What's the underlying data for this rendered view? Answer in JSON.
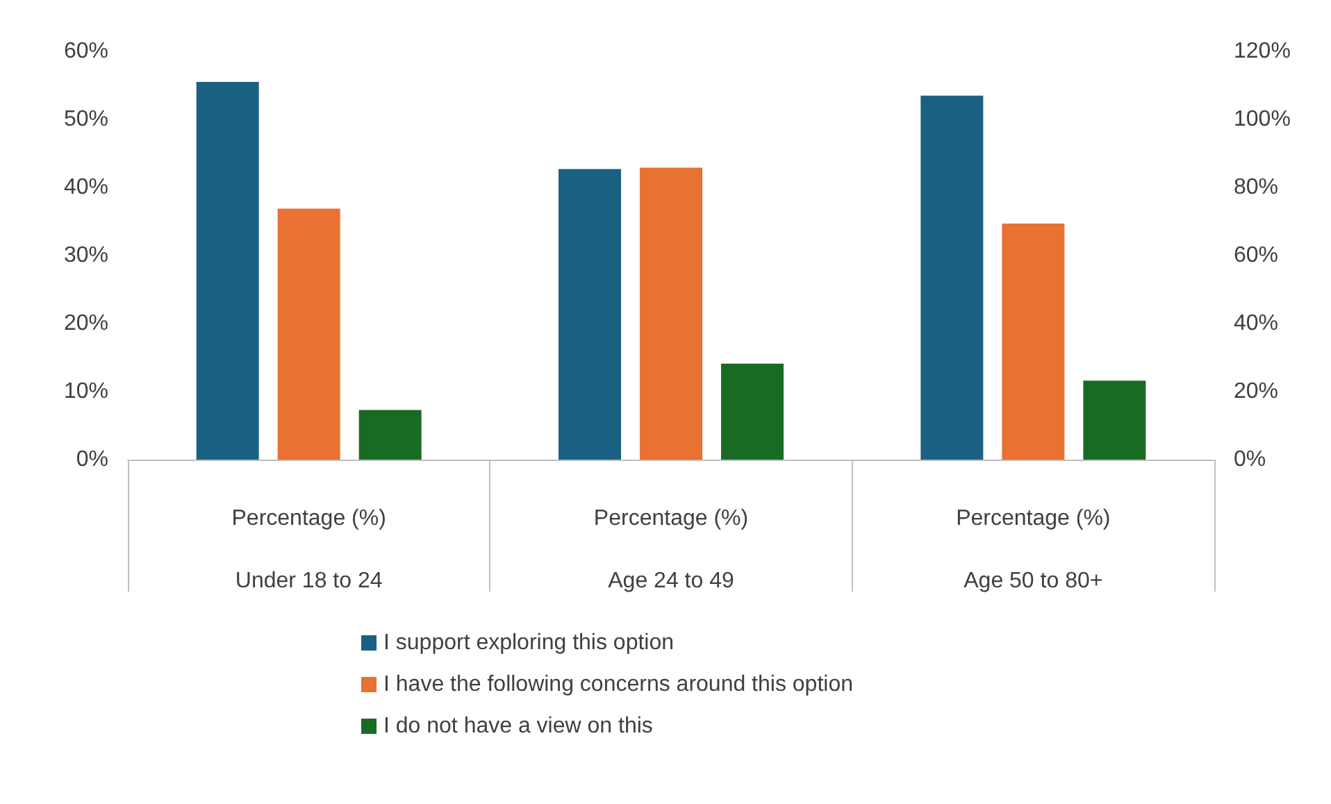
{
  "chart_data": {
    "type": "bar",
    "categories": [
      "Percentage (%)\nUnder 18 to 24",
      "Percentage (%)\nAge 24 to 49",
      "Percentage (%)\nAge 50 to 80+"
    ],
    "series": [
      {
        "name": "I support exploring this option",
        "color": "#1a6083",
        "values": [
          55.5,
          42.7,
          53.5
        ]
      },
      {
        "name": "I have the following concerns around this option",
        "color": "#e97132",
        "values": [
          36.9,
          42.9,
          34.7
        ]
      },
      {
        "name": "I do not have a view on this",
        "color": "#196b24",
        "values": [
          7.3,
          14.1,
          11.6
        ]
      }
    ],
    "ylim": [
      0,
      60
    ],
    "yticks": [
      {
        "value": 0,
        "label": "0%"
      },
      {
        "value": 10,
        "label": "10%"
      },
      {
        "value": 20,
        "label": "20%"
      },
      {
        "value": 30,
        "label": "30%"
      },
      {
        "value": 40,
        "label": "40%"
      },
      {
        "value": 50,
        "label": "50%"
      },
      {
        "value": 60,
        "label": "60%"
      }
    ],
    "y2lim": [
      0,
      120
    ],
    "y2ticks": [
      {
        "value": 0,
        "label": "0%"
      },
      {
        "value": 20,
        "label": "20%"
      },
      {
        "value": 40,
        "label": "40%"
      },
      {
        "value": 60,
        "label": "60%"
      },
      {
        "value": 80,
        "label": "80%"
      },
      {
        "value": 100,
        "label": "100%"
      },
      {
        "value": 120,
        "label": "120%"
      }
    ],
    "grid": false,
    "legend": "bottom"
  }
}
